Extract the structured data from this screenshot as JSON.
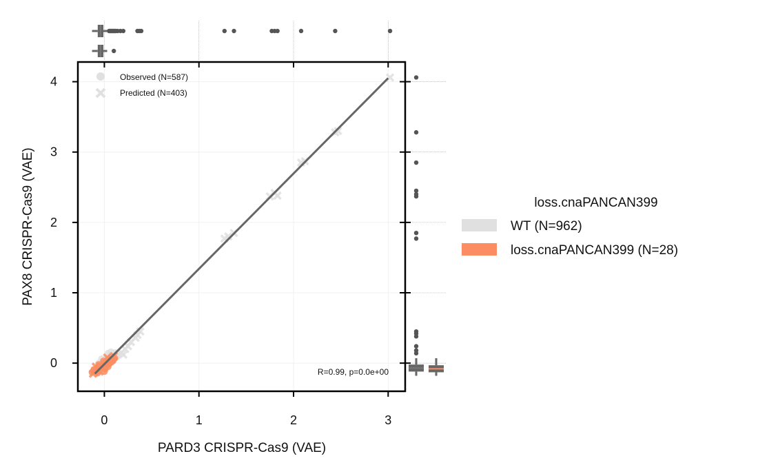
{
  "chart_data": {
    "type": "scatter",
    "xlabel": "PARD3 CRISPR-Cas9 (VAE)",
    "ylabel": "PAX8 CRISPR-Cas9 (VAE)",
    "xlim": [
      -0.28,
      3.18
    ],
    "ylim": [
      -0.4,
      4.28
    ],
    "x_ticks": [
      0,
      1,
      2,
      3
    ],
    "y_ticks": [
      0,
      1,
      2,
      3,
      4
    ],
    "grid": true,
    "fit_line": {
      "x": [
        -0.1,
        3.0
      ],
      "y": [
        -0.15,
        4.05
      ]
    },
    "annotation": "R=0.99, p=0.0e+00",
    "marker_legend": {
      "placement": "top-left",
      "entries": [
        {
          "label": "Observed (N=587)",
          "marker": "circle"
        },
        {
          "label": "Predicted (N=403)",
          "marker": "x"
        }
      ]
    },
    "color_legend": {
      "title": "loss.cnaPANCAN399",
      "placement": "outside-right",
      "entries": [
        {
          "label": "WT (N=962)",
          "color": "#e0e0e0"
        },
        {
          "label": "loss.cnaPANCAN399 (N=28)",
          "color": "#fc8d62"
        }
      ]
    },
    "series": [
      {
        "name": "WT (N=962)",
        "color": "#e0e0e0",
        "points": [
          {
            "x": -0.05,
            "y": -0.05,
            "m": "o"
          },
          {
            "x": -0.02,
            "y": 0.02,
            "m": "o"
          },
          {
            "x": 0.0,
            "y": 0.05,
            "m": "o"
          },
          {
            "x": 0.03,
            "y": 0.08,
            "m": "o"
          },
          {
            "x": 0.05,
            "y": 0.1,
            "m": "o"
          },
          {
            "x": 0.08,
            "y": 0.12,
            "m": "o"
          },
          {
            "x": -0.08,
            "y": -0.08,
            "m": "o"
          },
          {
            "x": 0.02,
            "y": -0.02,
            "m": "o"
          },
          {
            "x": 0.1,
            "y": 0.1,
            "m": "o"
          },
          {
            "x": 0.12,
            "y": 0.15,
            "m": "o"
          },
          {
            "x": -0.03,
            "y": 0.06,
            "m": "o"
          },
          {
            "x": 0.06,
            "y": 0.02,
            "m": "o"
          },
          {
            "x": 0.15,
            "y": 0.12,
            "m": "o"
          },
          {
            "x": -0.06,
            "y": 0.0,
            "m": "o"
          },
          {
            "x": 0.04,
            "y": 0.14,
            "m": "o"
          },
          {
            "x": 0.0,
            "y": -0.06,
            "m": "o"
          },
          {
            "x": 0.09,
            "y": 0.05,
            "m": "o"
          },
          {
            "x": -0.1,
            "y": -0.12,
            "m": "o"
          },
          {
            "x": 0.07,
            "y": 0.16,
            "m": "o"
          },
          {
            "x": 0.13,
            "y": 0.08,
            "m": "o"
          },
          {
            "x": 0.18,
            "y": 0.15,
            "m": "x"
          },
          {
            "x": 0.22,
            "y": 0.2,
            "m": "x"
          },
          {
            "x": 0.25,
            "y": 0.24,
            "m": "x"
          },
          {
            "x": 0.2,
            "y": 0.12,
            "m": "x"
          },
          {
            "x": 0.28,
            "y": 0.3,
            "m": "x"
          },
          {
            "x": 0.35,
            "y": 0.4,
            "m": "x"
          },
          {
            "x": 0.38,
            "y": 0.45,
            "m": "x"
          },
          {
            "x": 0.33,
            "y": 0.36,
            "m": "x"
          },
          {
            "x": 1.27,
            "y": 1.77,
            "m": "x"
          },
          {
            "x": 1.31,
            "y": 1.8,
            "m": "x"
          },
          {
            "x": 1.37,
            "y": 1.85,
            "m": "x"
          },
          {
            "x": 1.75,
            "y": 2.37,
            "m": "x"
          },
          {
            "x": 1.8,
            "y": 2.42,
            "m": "x"
          },
          {
            "x": 1.83,
            "y": 2.38,
            "m": "x"
          },
          {
            "x": 2.08,
            "y": 2.85,
            "m": "x"
          },
          {
            "x": 2.12,
            "y": 2.87,
            "m": "x"
          },
          {
            "x": 2.44,
            "y": 3.28,
            "m": "x"
          },
          {
            "x": 2.47,
            "y": 3.3,
            "m": "x"
          },
          {
            "x": 3.02,
            "y": 4.06,
            "m": "x"
          }
        ]
      },
      {
        "name": "loss.cnaPANCAN399 (N=28)",
        "color": "#fc8d62",
        "points": [
          {
            "x": -0.12,
            "y": -0.15,
            "m": "x"
          },
          {
            "x": -0.1,
            "y": -0.12,
            "m": "x"
          },
          {
            "x": -0.08,
            "y": -0.1,
            "m": "x"
          },
          {
            "x": -0.06,
            "y": -0.08,
            "m": "x"
          },
          {
            "x": -0.04,
            "y": -0.05,
            "m": "x"
          },
          {
            "x": -0.02,
            "y": -0.06,
            "m": "x"
          },
          {
            "x": 0.0,
            "y": -0.02,
            "m": "x"
          },
          {
            "x": 0.02,
            "y": 0.0,
            "m": "x"
          },
          {
            "x": 0.04,
            "y": 0.02,
            "m": "x"
          },
          {
            "x": 0.06,
            "y": 0.04,
            "m": "x"
          },
          {
            "x": 0.08,
            "y": 0.06,
            "m": "x"
          },
          {
            "x": 0.1,
            "y": 0.1,
            "m": "x"
          },
          {
            "x": -0.09,
            "y": -0.05,
            "m": "x"
          },
          {
            "x": -0.05,
            "y": -0.12,
            "m": "x"
          },
          {
            "x": 0.03,
            "y": 0.08,
            "m": "x"
          },
          {
            "x": -0.07,
            "y": -0.14,
            "m": "o"
          },
          {
            "x": -0.03,
            "y": -0.03,
            "m": "o"
          },
          {
            "x": 0.01,
            "y": -0.08,
            "m": "o"
          },
          {
            "x": 0.05,
            "y": -0.01,
            "m": "o"
          },
          {
            "x": -0.11,
            "y": -0.09,
            "m": "o"
          },
          {
            "x": 0.07,
            "y": 0.01,
            "m": "o"
          },
          {
            "x": -0.01,
            "y": 0.03,
            "m": "o"
          },
          {
            "x": 0.09,
            "y": 0.03,
            "m": "o"
          },
          {
            "x": -0.06,
            "y": -0.02,
            "m": "o"
          },
          {
            "x": 0.0,
            "y": -0.12,
            "m": "o"
          },
          {
            "x": 0.04,
            "y": -0.05,
            "m": "o"
          },
          {
            "x": -0.13,
            "y": -0.13,
            "m": "o"
          },
          {
            "x": 0.11,
            "y": 0.07,
            "m": "o"
          }
        ]
      }
    ],
    "marginal_x": {
      "box_wt": {
        "q1": -0.07,
        "median": -0.04,
        "q3": -0.01,
        "whisker_low": -0.13,
        "whisker_high": 0.03
      },
      "box_loss": {
        "q1": -0.07,
        "median": -0.04,
        "q3": -0.01,
        "whisker_low": -0.13,
        "whisker_high": 0.03
      },
      "outliers_wt": [
        0.05,
        0.06,
        0.07,
        0.08,
        0.09,
        0.1,
        0.11,
        0.12,
        0.14,
        0.17,
        0.2,
        0.35,
        0.37,
        0.39,
        1.27,
        1.37,
        1.77,
        1.8,
        1.83,
        2.08,
        2.44,
        3.02
      ],
      "outliers_loss": [
        0.1
      ]
    },
    "marginal_y": {
      "box_wt": {
        "q1": -0.12,
        "median": -0.07,
        "q3": -0.02,
        "whisker_low": -0.18,
        "whisker_high": 0.07
      },
      "box_loss": {
        "q1": -0.13,
        "median": -0.08,
        "q3": -0.03,
        "whisker_low": -0.18,
        "whisker_high": 0.07
      },
      "outliers_wt": [
        0.14,
        0.18,
        0.24,
        0.38,
        0.42,
        0.45,
        1.77,
        1.85,
        2.37,
        2.4,
        2.45,
        2.85,
        3.28,
        4.06
      ]
    }
  }
}
